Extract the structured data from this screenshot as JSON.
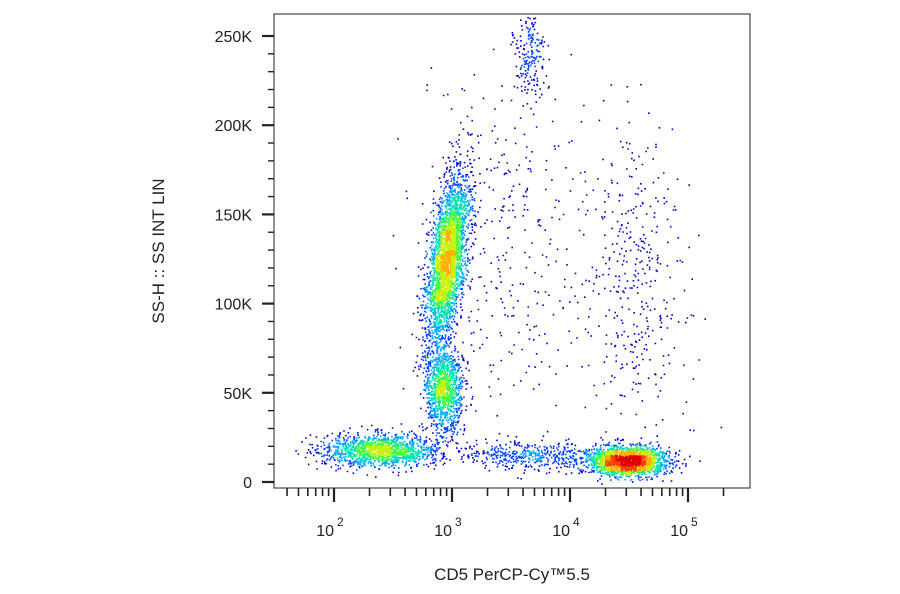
{
  "chart_data": {
    "type": "scatter",
    "title": "",
    "xlabel": "CD5 PerCP-Cy™5.5",
    "ylabel": "SS-H :: SS INT LIN",
    "x_scale": "log",
    "y_scale": "linear",
    "xlim": [
      40,
      250000
    ],
    "ylim": [
      -4000,
      260000
    ],
    "x_ticks": [
      {
        "value": 100,
        "base": "10",
        "exp": "2"
      },
      {
        "value": 1000,
        "base": "10",
        "exp": "3"
      },
      {
        "value": 10000,
        "base": "10",
        "exp": "4"
      },
      {
        "value": 100000,
        "base": "10",
        "exp": "5"
      }
    ],
    "y_ticks": [
      {
        "value": 0,
        "label": "0"
      },
      {
        "value": 50000,
        "label": "50K"
      },
      {
        "value": 100000,
        "label": "100K"
      },
      {
        "value": 150000,
        "label": "150K"
      },
      {
        "value": 200000,
        "label": "200K"
      },
      {
        "value": 250000,
        "label": "250K"
      }
    ],
    "grid": false,
    "legend": "none",
    "density_colormap": [
      "#0000cc",
      "#0044ff",
      "#00a8ff",
      "#00e0b0",
      "#40ff40",
      "#c8f000",
      "#ffb000",
      "#ff4000",
      "#e00000"
    ],
    "series": [
      {
        "x": 250,
        "y": 18000,
        "count": 1400,
        "sx_dec": 0.25,
        "sy": 4500
      },
      {
        "x": 900,
        "y": 125000,
        "count": 2900,
        "sx_dec": 0.09,
        "sy": 24000,
        "corr": 0.55
      },
      {
        "x": 850,
        "y": 52000,
        "count": 1100,
        "sx_dec": 0.08,
        "sy": 12000
      },
      {
        "x": 30000,
        "y": 12000,
        "count": 1900,
        "sx_dec": 0.17,
        "sy": 4000
      },
      {
        "x": 35000,
        "y": 110000,
        "count": 380,
        "sx_dec": 0.22,
        "sy": 45000
      },
      {
        "x": 4500,
        "y": 15000,
        "count": 450,
        "sx_dec": 0.3,
        "sy": 4000
      },
      {
        "x": 4500,
        "y": 240000,
        "count": 180,
        "sx_dec": 0.07,
        "sy": 12000
      },
      {
        "x": 3000,
        "y": 130000,
        "count": 350,
        "sx_dec": 0.4,
        "sy": 55000
      }
    ]
  }
}
